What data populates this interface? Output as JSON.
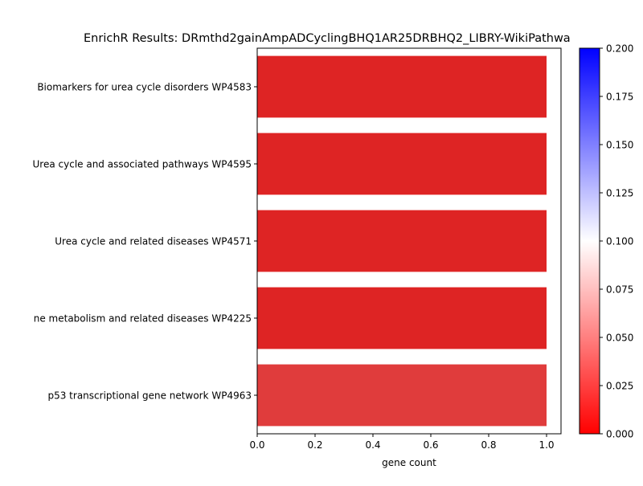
{
  "chart_data": {
    "type": "bar",
    "orientation": "horizontal",
    "title": "EnrichR Results: DRmthd2gainAmpADCyclingBHQ1AR25DRBHQ2_LIBRY-WikiPathwa",
    "xlabel": "gene count",
    "ylabel": "",
    "xlim": [
      0,
      1.05
    ],
    "x_ticks": [
      "0.0",
      "0.2",
      "0.4",
      "0.6",
      "0.8",
      "1.0"
    ],
    "grid": false,
    "categories": [
      "Biomarkers for urea cycle disorders WP4583",
      "Urea cycle and associated pathways WP4595",
      "Urea cycle and related diseases WP4571",
      "ne metabolism and related diseases WP4225",
      "p53 transcriptional gene network WP4963"
    ],
    "values": [
      1,
      1,
      1,
      1,
      1
    ],
    "bar_colors": [
      "#de2424",
      "#de2424",
      "#de2424",
      "#de2424",
      "#e03c3c"
    ],
    "colorbar": {
      "range": [
        0.0,
        0.2
      ],
      "tick_labels": [
        "0.000",
        "0.025",
        "0.050",
        "0.075",
        "0.100",
        "0.125",
        "0.150",
        "0.175",
        "0.200"
      ],
      "colormap": [
        "#ff0000",
        "#ffffff",
        "#0000ff"
      ]
    }
  }
}
